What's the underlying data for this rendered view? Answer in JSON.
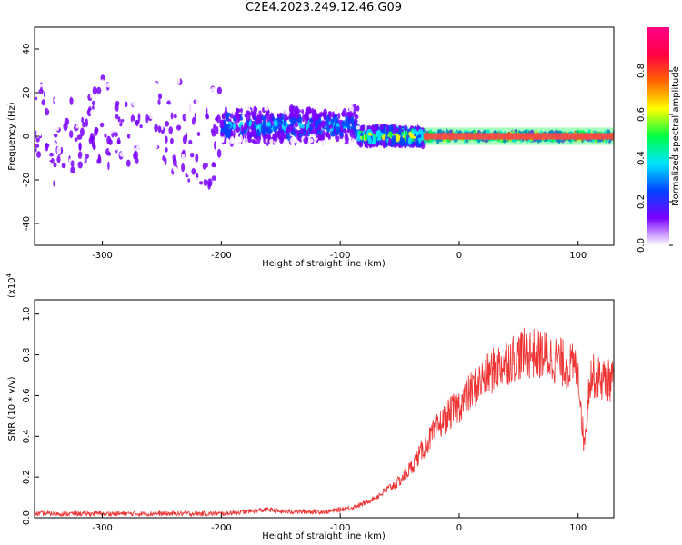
{
  "page": {
    "title": "C2E4.2023.249.12.46.G09"
  },
  "chart_data": [
    {
      "type": "heatmap",
      "xlabel": "Height of straight line (km)",
      "ylabel": "Frequency (Hz)",
      "xlim": [
        -357,
        130
      ],
      "ylim": [
        -50,
        50
      ],
      "xticks": [
        -300,
        -200,
        -100,
        0,
        100
      ],
      "yticks": [
        -40,
        -20,
        0,
        20,
        40
      ],
      "colorbar": {
        "label": "Normalized spectral amplitude",
        "range": [
          0,
          1
        ],
        "ticks": [
          "0.0",
          "0.2",
          "0.4",
          "0.6",
          "0.8"
        ],
        "colors": [
          "#ffffff",
          "#7a00ff",
          "#0044ff",
          "#00e5ff",
          "#00ff44",
          "#ffff00",
          "#ff6600",
          "#ff0044",
          "#ff0088"
        ]
      },
      "regions": [
        {
          "x_range": [
            -357,
            -200
          ],
          "freq_spread": 50,
          "amplitude": 0.15,
          "description_level": "noise"
        },
        {
          "x_range": [
            -200,
            -85
          ],
          "freq_center": 5,
          "freq_spread": 8,
          "amplitude": 0.35
        },
        {
          "x_range": [
            -85,
            -30
          ],
          "freq_center": 0,
          "freq_spread": 4,
          "amplitude": 0.6
        },
        {
          "x_range": [
            -30,
            130
          ],
          "freq_center": 0,
          "freq_spread": 1.5,
          "amplitude": 0.95
        }
      ]
    },
    {
      "type": "line",
      "xlabel": "Height of straight line (km)",
      "ylabel": "SNR (10 * v/v)",
      "ylabel_multiplier": "(x10",
      "ylabel_multiplier_exp": "4",
      "ylabel_multiplier_close": ")",
      "xlim": [
        -357,
        130
      ],
      "ylim": [
        0,
        1.07
      ],
      "xticks": [
        -300,
        -200,
        -100,
        0,
        100
      ],
      "yticks": [
        "0.0",
        "0.2",
        "0.4",
        "0.6",
        "0.8",
        "1.0"
      ],
      "series": [
        {
          "color": "#ee3333",
          "x": [
            -357,
            -300,
            -250,
            -200,
            -180,
            -160,
            -150,
            -130,
            -110,
            -100,
            -90,
            -80,
            -70,
            -60,
            -50,
            -40,
            -30,
            -20,
            -10,
            0,
            10,
            20,
            30,
            40,
            50,
            60,
            70,
            80,
            90,
            100,
            105,
            110,
            120,
            130
          ],
          "values": [
            0.02,
            0.02,
            0.02,
            0.02,
            0.03,
            0.04,
            0.03,
            0.03,
            0.03,
            0.04,
            0.05,
            0.07,
            0.1,
            0.14,
            0.18,
            0.25,
            0.34,
            0.43,
            0.5,
            0.55,
            0.62,
            0.68,
            0.73,
            0.77,
            0.8,
            0.81,
            0.8,
            0.78,
            0.75,
            0.73,
            0.35,
            0.7,
            0.68,
            0.67
          ]
        }
      ]
    }
  ]
}
